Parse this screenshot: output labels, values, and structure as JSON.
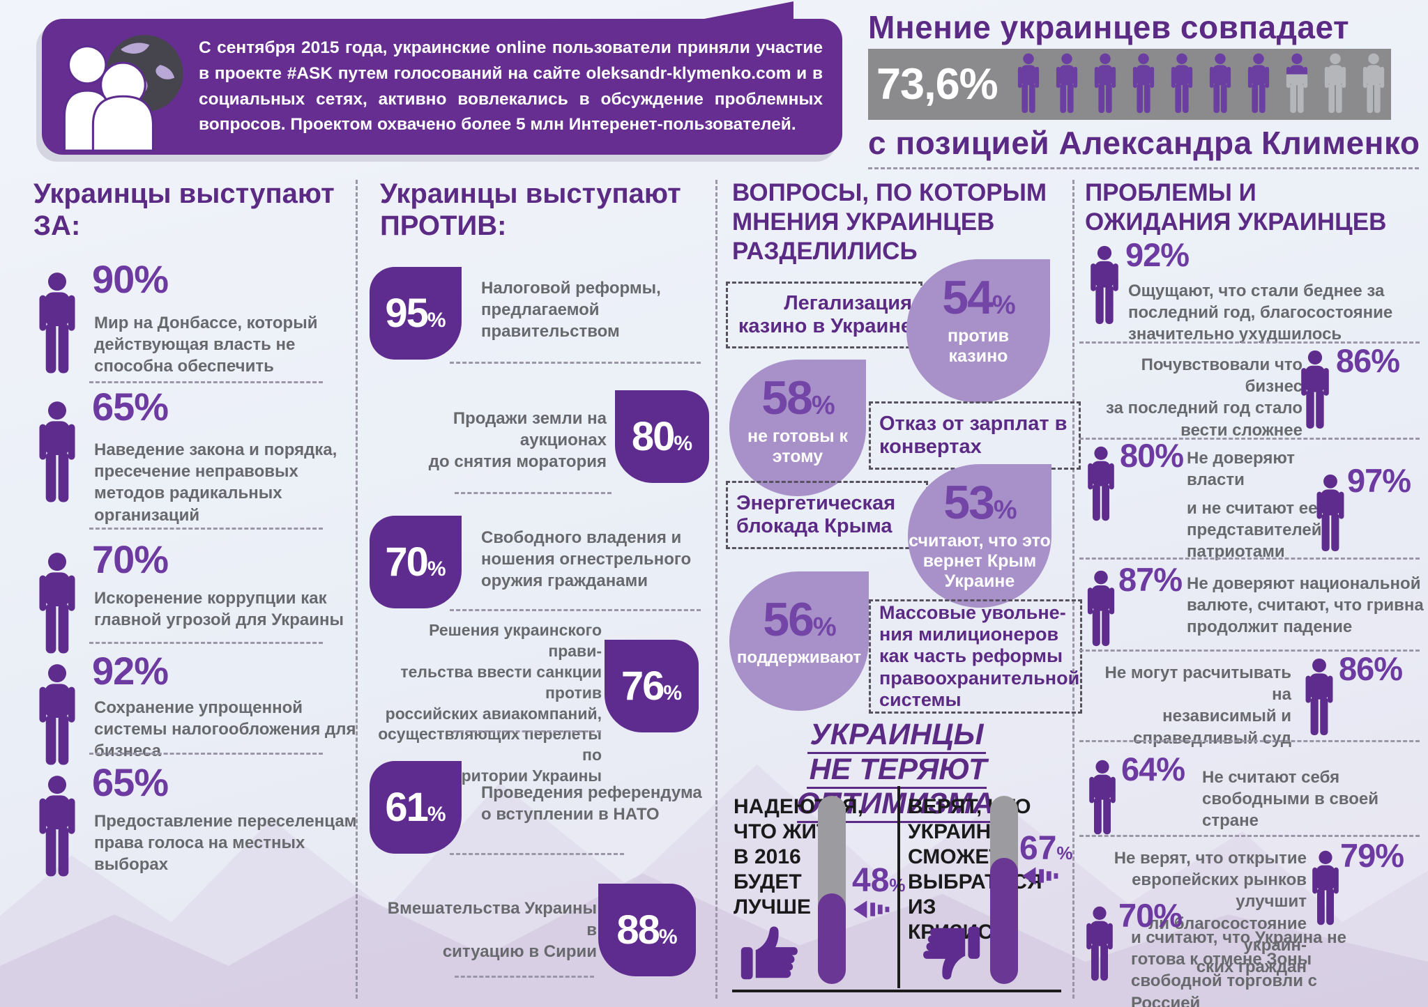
{
  "percent_sign": "%",
  "colors": {
    "title": "#5b2a84",
    "num": "#6c3aa0",
    "icon": "#5e2c8c",
    "icon_bar": "#6b3fa2",
    "icon_gray": "#b5b6ba",
    "bubble": "#662e91",
    "bar_bg": "#8b8b8d",
    "shape": "#5e2c8e",
    "blob": "#a890c8",
    "blob_num": "#7345a6",
    "body": "#68696d",
    "dash": "#9b95a8",
    "gauge": "#6a3795",
    "gauge_gray": "#9c9ca0",
    "black": "#1a1a1a",
    "mountain1": "#ded7e9",
    "mountain2": "#cfc3dd"
  },
  "header": {
    "bubble_text": "С сентября 2015 года, украинские online пользователи приняли участие в проекте #ASK путем голосований на сайте oleksandr-klymenko.com и в социальных сетях, активно вовлекались в обсуждение проблемных вопросов. Проектом охвачено более 5 млн Интеренет-пользователей.",
    "title_top": "Мнение украинцев совпадает",
    "percent": "73,6%",
    "title_bottom": "с позицией Александра Клименко"
  },
  "col_za": {
    "title": "Украинцы выступают\nЗА:",
    "items": [
      {
        "percent": "90%",
        "text": "Мир на Донбассе, который\nдействующая власть не\nспособна обеспечить"
      },
      {
        "percent": "65%",
        "text": "Наведение закона и порядка,\nпресечение неправовых\nметодов радикальных\nорганизаций"
      },
      {
        "percent": "70%",
        "text": "Искоренение коррупции как\nглавной угрозой для Украины"
      },
      {
        "percent": "92%",
        "text": "Сохранение упрощенной\nсистемы налогообложения для\nбизнеса"
      },
      {
        "percent": "65%",
        "text": "Предоставление переселенцам\nправа голоса на местных\nвыборах"
      }
    ]
  },
  "col_protiv": {
    "title": "Украинцы выступают\nПРОТИВ:",
    "items": [
      {
        "value": "95",
        "text": "Налоговой реформы,\nпредлагаемой\nправительством"
      },
      {
        "value": "80",
        "text": "Продажи земли на аукционах\nдо снятия моратория"
      },
      {
        "value": "70",
        "text": "Свободного владения и\nношения огнестрельного\nоружия гражданами"
      },
      {
        "value": "76",
        "text": "Решения украинского прави-\nтельства ввести санкции против\nроссийских авиакомпаний,\nосуществляющих перелеты по\nтерритории Украины"
      },
      {
        "value": "61",
        "text": "Проведения референдума\nо вступлении в НАТО"
      },
      {
        "value": "88",
        "text": "Вмешательства Украины в\nситуацию в Сирии"
      }
    ]
  },
  "col_split": {
    "title": "ВОПРОСЫ, ПО КОТОРЫМ\nМНЕНИЯ УКРАИНЦЕВ\nРАЗДЕЛИЛИСЬ",
    "items": [
      {
        "question": "Легализация\nказино в Украине",
        "value": "54",
        "label": "против\nказино"
      },
      {
        "question": "Отказ от зарплат в\nконвертах",
        "value": "58",
        "label": "не готовы к\nэтому"
      },
      {
        "question": "Энергетическая\nблокада Крыма",
        "value": "53",
        "label": "считают, что это\nвернет Крым\nУкраине"
      },
      {
        "question": "Массовые увольне-\nния милиционеров\nкак часть реформы\nправоохранительной\nсистемы",
        "value": "56",
        "label": "поддерживают"
      }
    ]
  },
  "optimism": {
    "title1": "УКРАИНЦЫ",
    "title2": "НЕ ТЕРЯЮТ ОПТИМИЗМА",
    "left": {
      "label": "НАДЕЮТСЯ,\nЧТО ЖИТЬ\nВ 2016\nБУДЕТ\nЛУЧШЕ",
      "value": "48",
      "fill": 48
    },
    "right": {
      "label": "ВЕРЯТ, ЧТО\nУКРАИНА\nСМОЖЕТ\nВЫБРАТЬСЯ\nИЗ КРИЗИСА",
      "value": "67",
      "fill": 67
    }
  },
  "col_problems": {
    "title": "ПРОБЛЕМЫ И\nОЖИДАНИЯ УКРАИНЦЕВ",
    "items": [
      {
        "percent": "92%",
        "text": "Ощущают, что стали беднее за\nпоследний год, благосостояние\nзначительно ухудшилось"
      },
      {
        "percent": "86%",
        "text": "Почувствовали что бизнес\nза последний год стало\nвести сложнее"
      },
      {
        "percent": "80%",
        "text": "Не доверяют\nвласти"
      },
      {
        "percent": "97%",
        "text": "и не считают ее\nпредставителей\nпатриотами"
      },
      {
        "percent": "87%",
        "text": "Не доверяют национальной\nвалюте, считают, что гривна\nпродолжит падение"
      },
      {
        "percent": "86%",
        "text": "Не могут расчитывать на\nнезависимый и\nсправедливый суд"
      },
      {
        "percent": "64%",
        "text": "Не считают себя\nсвободными в своей\nстране"
      },
      {
        "percent": "79%",
        "text": "Не верят, что открытие\nевропейских рынков улучшит\nли благосостояние украин-\nских граждан"
      },
      {
        "percent": "70%",
        "text": "и считают, что Украина не\nготова к отмене Зоны\nсвободной торговли с Россией"
      }
    ]
  },
  "chart_data": [
    {
      "type": "pictogram",
      "title": "Мнение украинцев совпадает с позицией Александра Клименко",
      "value": 73.6,
      "unit": "%",
      "icons_total": 10
    },
    {
      "type": "bar",
      "title": "Украинцы выступают ЗА",
      "unit": "%",
      "categories": [
        "Мир на Донбассе, который действующая власть не способна обеспечить",
        "Наведение закона и порядка, пресечение неправовых методов радикальных организаций",
        "Искоренение коррупции как главной угрозой для Украины",
        "Сохранение упрощенной системы налогообложения для бизнеса",
        "Предоставление переселенцам права голоса на местных выборах"
      ],
      "values": [
        90,
        65,
        70,
        92,
        65
      ]
    },
    {
      "type": "bar",
      "title": "Украинцы выступают ПРОТИВ",
      "unit": "%",
      "categories": [
        "Налоговой реформы, предлагаемой правительством",
        "Продажи земли на аукционах до снятия моратория",
        "Свободного владения и ношения огнестрельного оружия гражданами",
        "Решения украинского правительства ввести санкции против российских авиакомпаний, осуществляющих перелеты по территории Украины",
        "Проведения референдума о вступлении в НАТО",
        "Вмешательства Украины в ситуацию в Сирии"
      ],
      "values": [
        95,
        80,
        70,
        76,
        61,
        88
      ]
    },
    {
      "type": "bar",
      "title": "Вопросы, по которым мнения украинцев разделились",
      "unit": "%",
      "categories": [
        "Легализация казино в Украине — против казино",
        "Отказ от зарплат в конвертах — не готовы к этому",
        "Энергетическая блокада Крыма — считают, что это вернет Крым Украине",
        "Массовые увольнения милиционеров как часть реформы правоохранительной системы — поддерживают"
      ],
      "values": [
        54,
        58,
        53,
        56
      ]
    },
    {
      "type": "bar",
      "title": "Украинцы не теряют оптимизма",
      "unit": "%",
      "categories": [
        "Надеются, что жить в 2016 будет лучше",
        "Верят, что Украина сможет выбраться из кризиса"
      ],
      "values": [
        48,
        67
      ]
    },
    {
      "type": "bar",
      "title": "Проблемы и ожидания украинцев",
      "unit": "%",
      "categories": [
        "Ощущают, что стали беднее за последний год, благосостояние значительно ухудшилось",
        "Почувствовали что бизнес за последний год стало вести сложнее",
        "Не доверяют власти",
        "Не считают представителей власти патриотами",
        "Не доверяют национальной валюте, считают, что гривна продолжит падение",
        "Не могут расчитывать на независимый и справедливый суд",
        "Не считают себя свободными в своей стране",
        "Не верят, что открытие европейских рынков улучшит благосостояние украинских граждан",
        "Считают, что Украина не готова к отмене Зоны свободной торговли с Россией"
      ],
      "values": [
        92,
        86,
        80,
        97,
        87,
        86,
        64,
        79,
        70
      ]
    }
  ]
}
